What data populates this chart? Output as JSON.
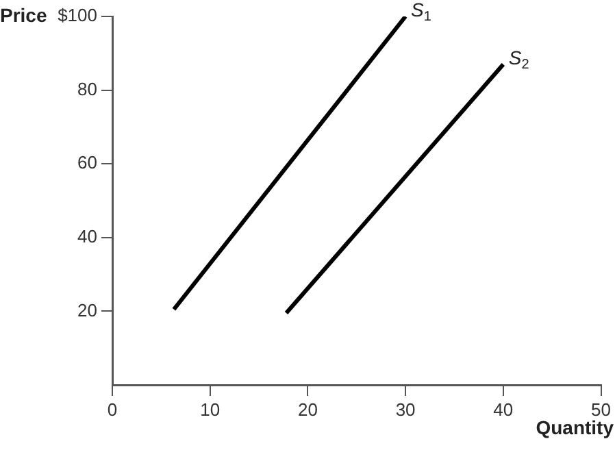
{
  "chart_data": {
    "type": "line",
    "xlabel": "Quantity",
    "ylabel": "Price",
    "series": [
      {
        "name": "S$_{1}$",
        "color": "#000000",
        "x": [
          6.3,
          30
        ],
        "values": [
          20.5,
          100
        ]
      },
      {
        "name": "S$_{2}$",
        "color": "#000000",
        "x": [
          17.8,
          40
        ],
        "values": [
          19.5,
          87
        ]
      }
    ],
    "xlim": [
      0,
      50
    ],
    "xticks": [
      0,
      10,
      20,
      30,
      40,
      50
    ],
    "ylim": [
      0,
      100
    ],
    "yticks": [
      20,
      40,
      60,
      80,
      {
        "value": 100,
        "label": "$100"
      }
    ],
    "grid": false,
    "legend": false,
    "marker": "none",
    "line_style": "solid"
  }
}
